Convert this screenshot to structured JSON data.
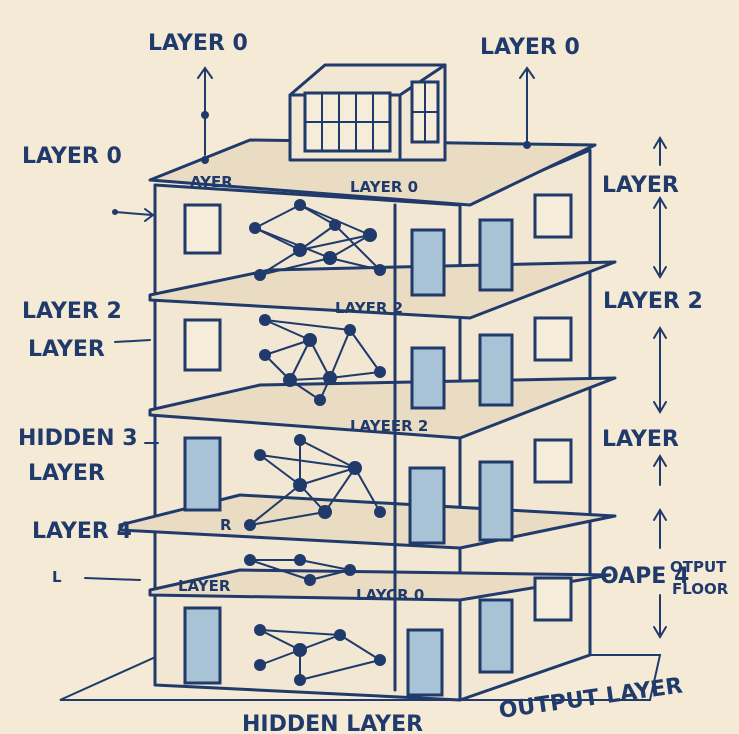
{
  "labels": {
    "top_left": "LAYER 0",
    "top_right": "LAYER 0",
    "left_upper": "LAYER 0",
    "roof_ayer": "AYER",
    "roof_layer0": "LAYER 0",
    "right_layer_1": "LAYER",
    "left_layer2": "LAYER 2",
    "left_layer": "LAYER",
    "slab_layer2_a": "LAYER 2",
    "right_layer2": "LAYER 2",
    "left_hidden3": "HIDDEN 3",
    "left_layer_b": "LAYER",
    "slab_layer2_b": "LAYEER 2",
    "right_layer_2": "LAYER",
    "left_layer4": "LAYER 4",
    "slab_r": "R",
    "right_oape4": "OAPE 4",
    "right_otput": "OTPUT",
    "right_floor": "FLOOR",
    "ground_layer": "LAYER",
    "ground_layer0": "LAYCR 0",
    "bottom_hidden": "HIDDEN LAYER",
    "bottom_output": "OUTPUT LAYER",
    "small_l": "L"
  },
  "colors": {
    "ink": "#1f3a6b",
    "paper": "#f4ead6",
    "door": "#a9c3d6"
  }
}
